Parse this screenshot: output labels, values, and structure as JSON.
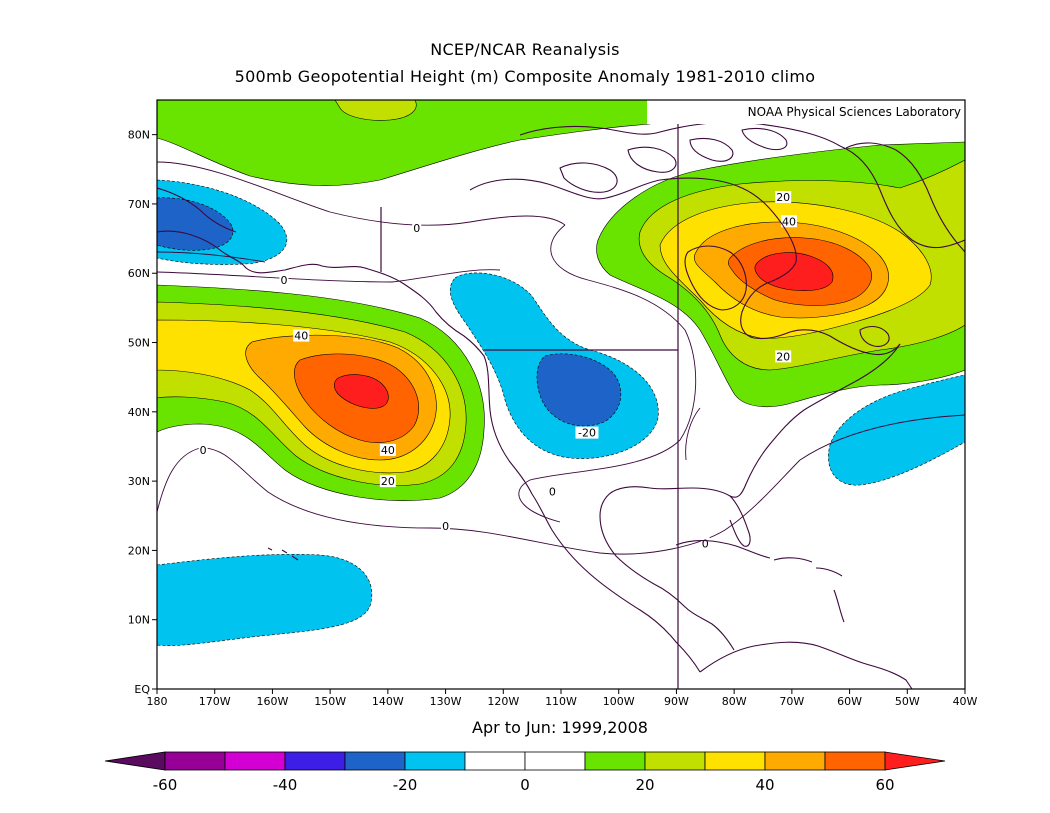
{
  "header": {
    "title": "NCEP/NCAR Reanalysis",
    "subtitle": "500mb Geopotential Height (m) Composite Anomaly 1981-2010 climo"
  },
  "credit": "NOAA Physical Sciences Laboratory",
  "period_label": "Apr to Jun: 1999,2008",
  "map": {
    "lon_range": [
      -180,
      -40
    ],
    "lat_range": [
      0,
      85
    ],
    "lon_ticks": [
      "180",
      "170W",
      "160W",
      "150W",
      "140W",
      "130W",
      "120W",
      "110W",
      "100W",
      "90W",
      "80W",
      "70W",
      "60W",
      "50W",
      "40W"
    ],
    "lat_ticks": [
      "EQ",
      "10N",
      "20N",
      "30N",
      "40N",
      "50N",
      "60N",
      "70N",
      "80N"
    ],
    "contour_labels": [
      {
        "text": "0",
        "lon": -158,
        "lat": 59
      },
      {
        "text": "0",
        "lon": -135,
        "lat": 66.5
      },
      {
        "text": "0",
        "lon": -172,
        "lat": 34.5
      },
      {
        "text": "0",
        "lon": -111.5,
        "lat": 28.5
      },
      {
        "text": "0",
        "lon": -130,
        "lat": 23.5
      },
      {
        "text": "0",
        "lon": -85,
        "lat": 21
      },
      {
        "text": "40",
        "lon": -155,
        "lat": 51
      },
      {
        "text": "40",
        "lon": -140,
        "lat": 34.5
      },
      {
        "text": "20",
        "lon": -140,
        "lat": 30
      },
      {
        "text": "-20",
        "lon": -105.5,
        "lat": 37
      },
      {
        "text": "20",
        "lon": -71.5,
        "lat": 71
      },
      {
        "text": "40",
        "lon": -70.5,
        "lat": 67.5
      },
      {
        "text": "20",
        "lon": -71.5,
        "lat": 48
      }
    ]
  },
  "colorbar": {
    "colors": [
      "#5a0a5f",
      "#960096",
      "#d200d2",
      "#3c1ee6",
      "#1e64c8",
      "#00c3ef",
      "#ffffff",
      "#ffffff",
      "#69e300",
      "#c2e000",
      "#ffe100",
      "#ffaa00",
      "#ff6400",
      "#ff1e1e"
    ],
    "labels": [
      "-60",
      "-40",
      "-20",
      "0",
      "20",
      "40",
      "60"
    ]
  },
  "colors": {
    "outline": "#3c0a3c",
    "frame": "#000000"
  }
}
